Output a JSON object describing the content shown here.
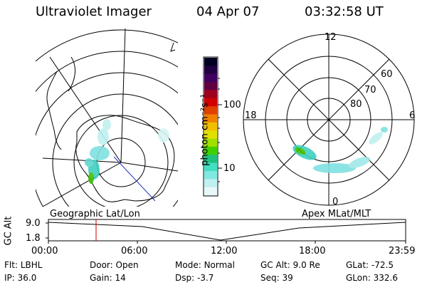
{
  "header": {
    "instrument": "Ultraviolet Imager",
    "date": "04 Apr 07",
    "time": "03:32:58 UT"
  },
  "left_map": {
    "label": "Geographic Lat/Lon"
  },
  "right_map": {
    "label": "Apex MLat/MLT",
    "mlt_labels": [
      "12",
      "18",
      "6",
      "0"
    ],
    "lat_labels": [
      "60",
      "70",
      "80"
    ]
  },
  "colorbar": {
    "unit_label": "photon cm⁻²s⁻¹",
    "ticks": [
      "100",
      "10"
    ],
    "colors": [
      "#000020",
      "#200040",
      "#400060",
      "#600040",
      "#a00020",
      "#d00000",
      "#e04000",
      "#f08000",
      "#f0c000",
      "#e0e000",
      "#a0e000",
      "#40d000",
      "#20c080",
      "#40e0c0",
      "#80e8e0",
      "#c0f0f0",
      "#e8f8f8"
    ]
  },
  "altitude_plot": {
    "ylabel": "GC Alt",
    "yticks": [
      "9.0",
      "1.8"
    ],
    "xticks": [
      "00:00",
      "06:00",
      "12:00",
      "18:00",
      "23:59"
    ],
    "current_time_marker": "03:32",
    "marker_color": "#cc0000"
  },
  "footer": {
    "row1": [
      {
        "label": "Flt:",
        "value": "LBHL"
      },
      {
        "label": "Door:",
        "value": "Open"
      },
      {
        "label": "Mode:",
        "value": "Normal"
      },
      {
        "label": "GC Alt:",
        "value": "9.0 Re"
      },
      {
        "label": "GLat:",
        "value": "-72.5"
      }
    ],
    "row2": [
      {
        "label": "IP:",
        "value": "36.0"
      },
      {
        "label": "Gain:",
        "value": "14"
      },
      {
        "label": "Dsp:",
        "value": "-3.7"
      },
      {
        "label": "Seq:",
        "value": "39"
      },
      {
        "label": "GLon:",
        "value": "332.6"
      }
    ]
  }
}
